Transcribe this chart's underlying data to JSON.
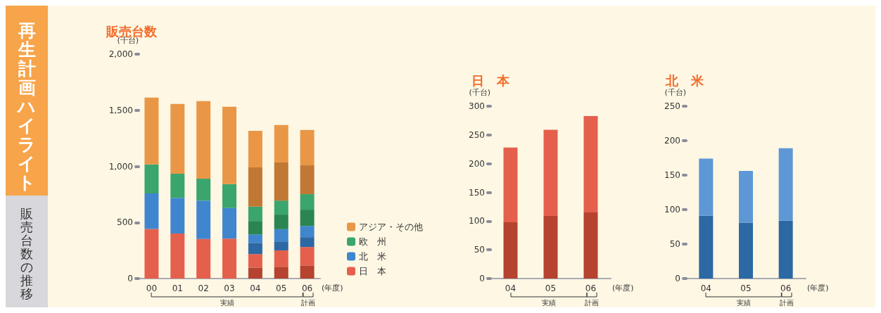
{
  "chart_data": [
    {
      "type": "other",
      "title": "再生計画ハイライト",
      "subtitle": "販売台数の推移"
    },
    {
      "type": "bar",
      "title": "販売台数",
      "ylabel": "(千台)",
      "xlabel": "(年度)",
      "categories": [
        "00",
        "01",
        "02",
        "03",
        "04",
        "05",
        "06"
      ],
      "stacked": true,
      "legend": "right",
      "grid": false,
      "ylim": [
        0,
        2000
      ],
      "yticks": [
        0,
        500,
        {
          "value": 1000,
          "label": "1,000"
        },
        {
          "value": 1500,
          "label": "1,500"
        },
        {
          "value": 2000,
          "label": "2,000"
        }
      ],
      "annotations": [
        "実績",
        "計画"
      ],
      "series": [
        {
          "color": "#b5432f",
          "values": [
            null,
            null,
            null,
            null,
            98,
            105,
            117
          ]
        },
        {
          "name": "日　本",
          "color": "#e5604c",
          "values": [
            442,
            402,
            352,
            356,
            120,
            146,
            164
          ]
        },
        {
          "color": "#2c68a3",
          "values": [
            null,
            null,
            null,
            null,
            100,
            80,
            88
          ]
        },
        {
          "name": "北　米",
          "color": "#3f86cf",
          "values": [
            316,
            318,
            343,
            272,
            76,
            109,
            100
          ]
        },
        {
          "color": "#2a8553",
          "values": [
            null,
            null,
            null,
            null,
            119,
            130,
            145
          ]
        },
        {
          "name": "欧　州",
          "color": "#3aa56c",
          "values": [
            260,
            214,
            195,
            214,
            128,
            125,
            138
          ]
        },
        {
          "color": "#c17834",
          "values": [
            null,
            null,
            null,
            null,
            350,
            340,
            257
          ]
        },
        {
          "name": "アジア・その他",
          "color": "#e99746",
          "values": [
            595,
            622,
            691,
            689,
            326,
            333,
            315
          ]
        }
      ]
    },
    {
      "type": "bar",
      "title": "日　本",
      "ylabel": "(千台)",
      "xlabel": "(年度)",
      "categories": [
        "04",
        "05",
        "06"
      ],
      "stacked": true,
      "grid": false,
      "ylim": [
        0,
        300
      ],
      "yticks": [
        0,
        50,
        100,
        150,
        200,
        250,
        300
      ],
      "annotations": [
        "実績",
        "計画"
      ],
      "series": [
        {
          "color": "#b5432f",
          "values": [
            98,
            109,
            115
          ]
        },
        {
          "color": "#e5604c",
          "values": [
            130,
            150,
            168
          ]
        }
      ]
    },
    {
      "type": "bar",
      "title": "北　米",
      "ylabel": "(千台)",
      "xlabel": "(年度)",
      "categories": [
        "04",
        "05",
        "06"
      ],
      "stacked": true,
      "grid": false,
      "ylim": [
        0,
        250
      ],
      "yticks": [
        0,
        50,
        100,
        150,
        200,
        250
      ],
      "annotations": [
        "実績",
        "計画"
      ],
      "series": [
        {
          "color": "#2c68a3",
          "values": [
            91,
            81,
            84
          ]
        },
        {
          "color": "#5d97d6",
          "values": [
            83,
            75,
            105
          ]
        }
      ]
    }
  ]
}
